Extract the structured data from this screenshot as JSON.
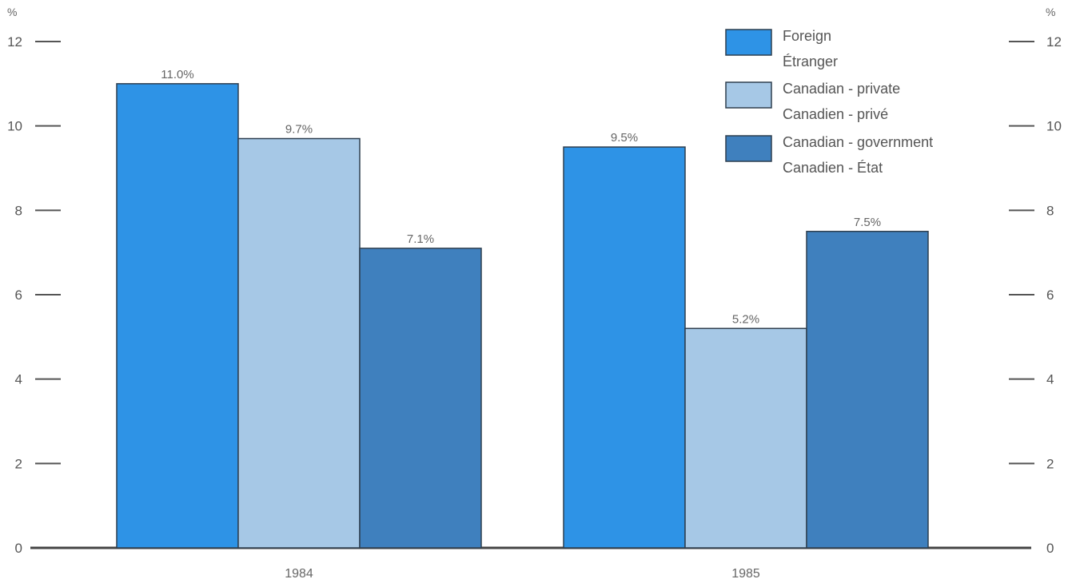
{
  "chart_data": {
    "type": "bar",
    "y_unit_left": "%",
    "y_unit_right": "%",
    "ylim": [
      0,
      12
    ],
    "yticks": [
      "0",
      "2",
      "4",
      "6",
      "8",
      "10",
      "12"
    ],
    "grid": false,
    "legend_position": "top-right",
    "categories": [
      "1984",
      "1985"
    ],
    "series": [
      {
        "name": "Foreign",
        "name_fr": "Étranger",
        "color": "#2e93e6",
        "values": [
          11.0,
          9.5
        ],
        "labels": [
          "11.0%",
          "9.5%"
        ]
      },
      {
        "name": "Canadian - private",
        "name_fr": "Canadien - privé",
        "color": "#a6c8e6",
        "values": [
          9.7,
          5.2
        ],
        "labels": [
          "9.7%",
          "5.2%"
        ]
      },
      {
        "name": "Canadian - government",
        "name_fr": "Canadien - État",
        "color": "#3f80be",
        "values": [
          7.1,
          7.5
        ],
        "labels": [
          "7.1%",
          "7.5%"
        ]
      }
    ]
  }
}
